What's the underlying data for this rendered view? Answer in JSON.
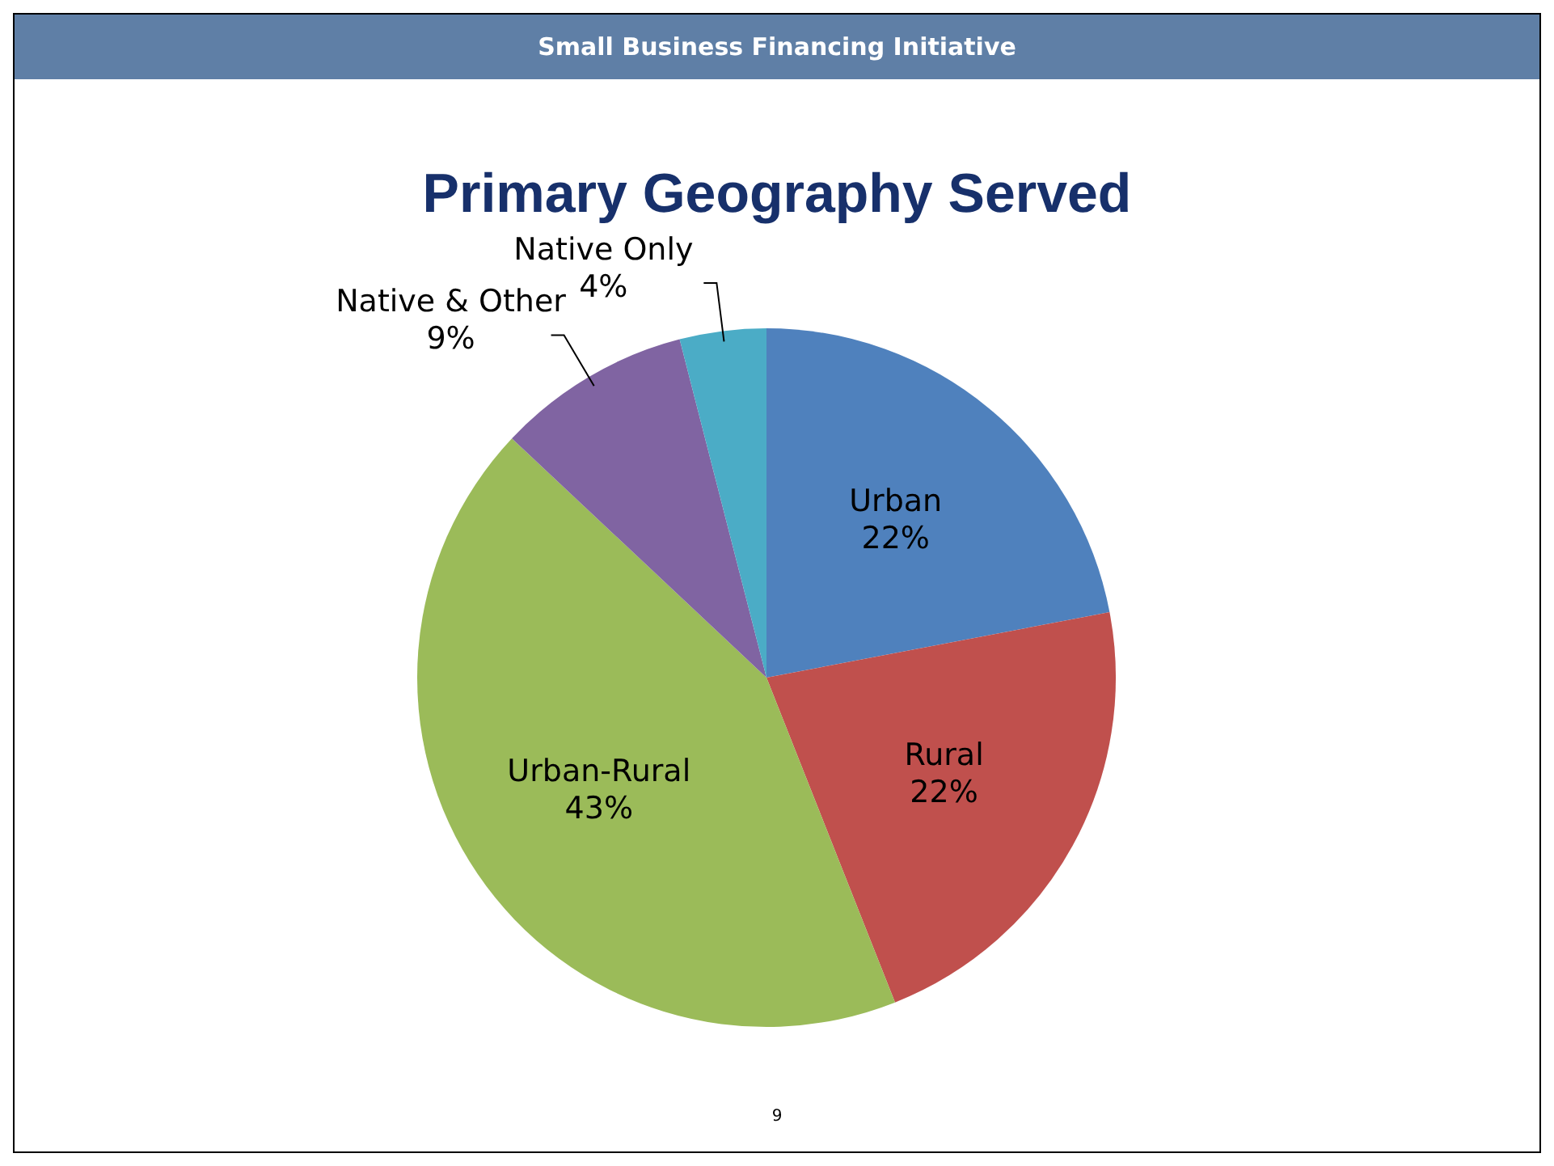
{
  "chart_data": {
    "type": "pie",
    "subtitle": "Small Business Financing Initiative",
    "title": "Primary Geography Served",
    "categories": [
      "Urban",
      "Rural",
      "Urban-Rural",
      "Native & Other",
      "Native Only"
    ],
    "values": [
      22,
      22,
      43,
      9,
      4
    ],
    "value_labels": [
      "22%",
      "22%",
      "43%",
      "9%",
      "4%"
    ],
    "colors": [
      "#4f81bd",
      "#c0504d",
      "#9bbb59",
      "#8064a2",
      "#4bacc6"
    ],
    "annotations": [
      "9"
    ]
  }
}
